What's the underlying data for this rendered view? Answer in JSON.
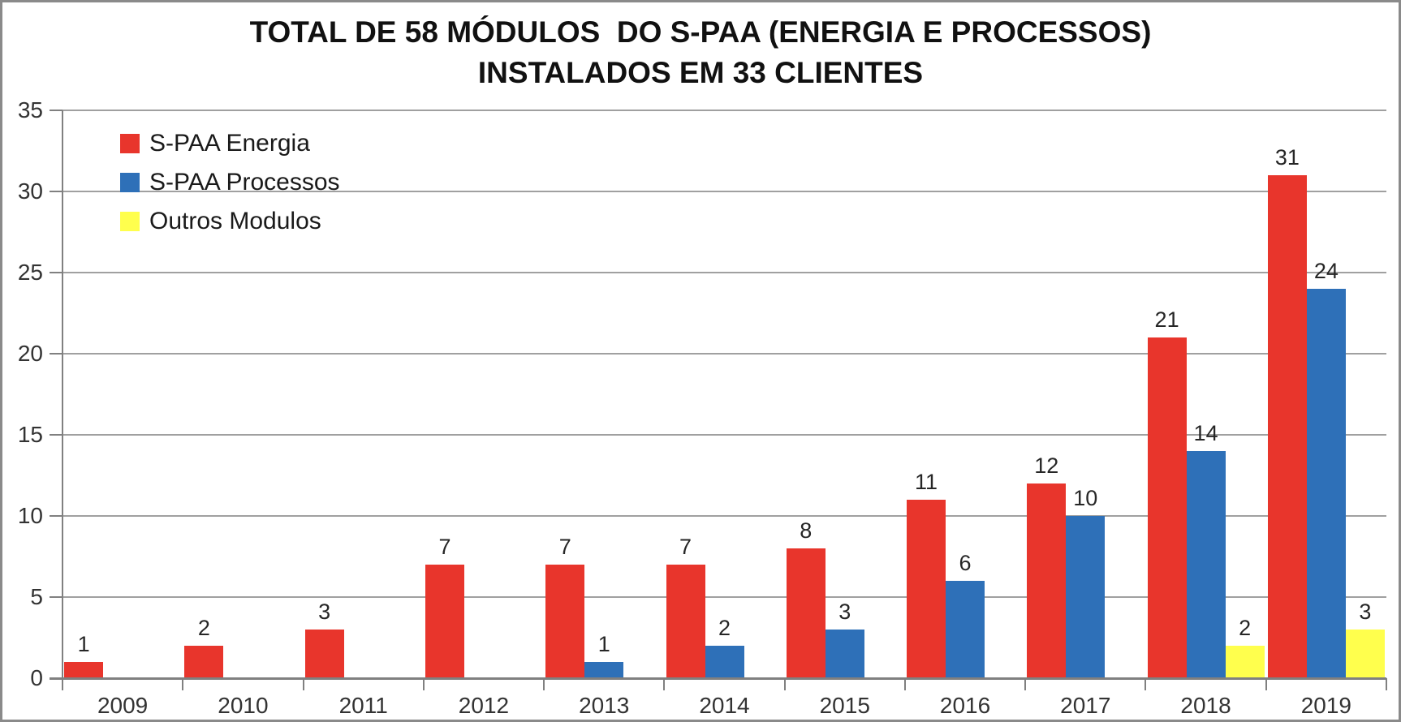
{
  "chart_data": {
    "type": "bar",
    "title_line1": "TOTAL DE 58 MÓDULOS  DO S-PAA (ENERGIA E PROCESSOS)",
    "title_line2": "INSTALADOS EM 33 CLIENTES",
    "categories": [
      "2009",
      "2010",
      "2011",
      "2012",
      "2013",
      "2014",
      "2015",
      "2016",
      "2017",
      "2018",
      "2019"
    ],
    "series": [
      {
        "name": "S-PAA Energia",
        "color": "#e8352c",
        "values": [
          1,
          2,
          3,
          7,
          7,
          7,
          8,
          11,
          12,
          21,
          31
        ]
      },
      {
        "name": "S-PAA Processos",
        "color": "#2e70b8",
        "values": [
          null,
          null,
          null,
          null,
          1,
          2,
          3,
          6,
          10,
          14,
          24
        ]
      },
      {
        "name": "Outros Modulos",
        "color": "#ffff4d",
        "values": [
          null,
          null,
          null,
          null,
          null,
          null,
          null,
          null,
          null,
          2,
          3
        ]
      }
    ],
    "ylim": [
      0,
      35
    ],
    "yticks": [
      0,
      5,
      10,
      15,
      20,
      25,
      30,
      35
    ],
    "grid": true,
    "legend_position": "top-left",
    "data_labels": true,
    "gridline_color": "#a0a0a0",
    "axis_color": "#808080",
    "frame_color": "#8a8a8a"
  }
}
